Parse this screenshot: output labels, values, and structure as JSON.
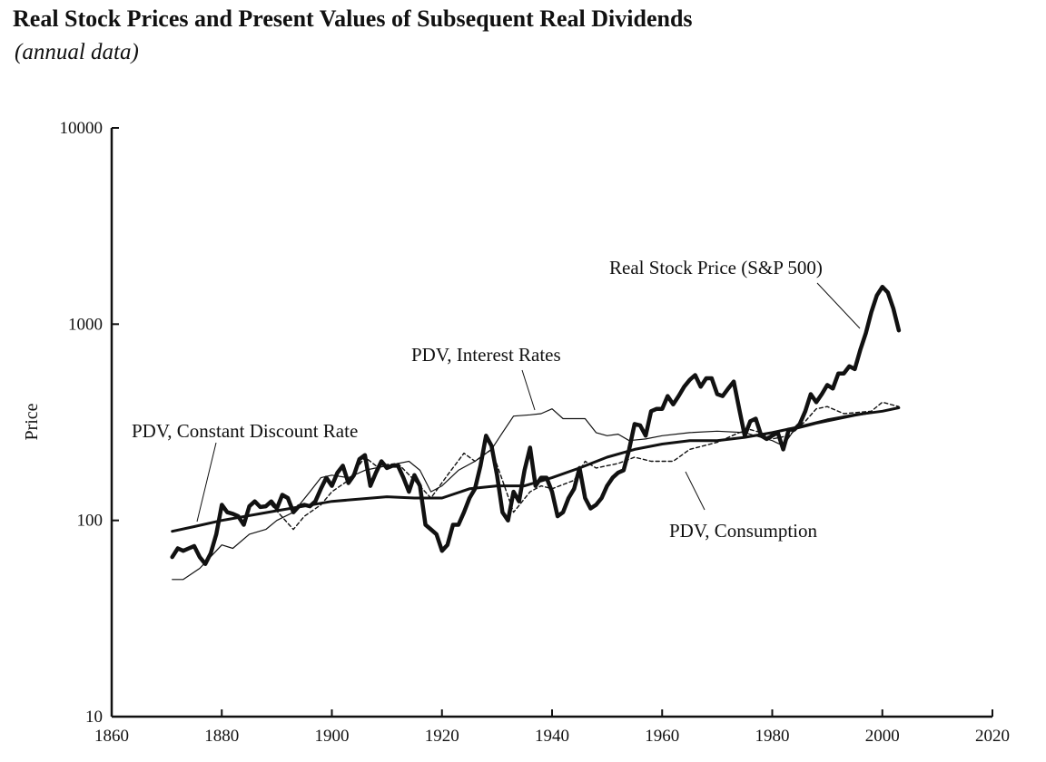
{
  "title": "Real Stock Prices and Present Values of Subsequent Real Dividends",
  "subtitle": "(annual data)",
  "chart_data": {
    "type": "line",
    "title": "Real Stock Prices and Present Values of Subsequent Real Dividends",
    "subtitle": "(annual data)",
    "xlabel": "",
    "ylabel": "Price",
    "xlim": [
      1860,
      2020
    ],
    "ylim": [
      10,
      10000
    ],
    "yscale": "log",
    "xticks": [
      1860,
      1880,
      1900,
      1920,
      1940,
      1960,
      1980,
      2000,
      2020
    ],
    "yticks": [
      10,
      100,
      1000,
      10000
    ],
    "grid": false,
    "series": [
      {
        "name": "Real Stock Price (S&P 500)",
        "style": "thick",
        "x": [
          1871,
          1872,
          1873,
          1874,
          1875,
          1876,
          1877,
          1878,
          1879,
          1880,
          1881,
          1882,
          1883,
          1884,
          1885,
          1886,
          1887,
          1888,
          1889,
          1890,
          1891,
          1892,
          1893,
          1894,
          1895,
          1896,
          1897,
          1898,
          1899,
          1900,
          1901,
          1902,
          1903,
          1904,
          1905,
          1906,
          1907,
          1908,
          1909,
          1910,
          1911,
          1912,
          1913,
          1914,
          1915,
          1916,
          1917,
          1918,
          1919,
          1920,
          1921,
          1922,
          1923,
          1924,
          1925,
          1926,
          1927,
          1928,
          1929,
          1930,
          1931,
          1932,
          1933,
          1934,
          1935,
          1936,
          1937,
          1938,
          1939,
          1940,
          1941,
          1942,
          1943,
          1944,
          1945,
          1946,
          1947,
          1948,
          1949,
          1950,
          1951,
          1952,
          1953,
          1954,
          1955,
          1956,
          1957,
          1958,
          1959,
          1960,
          1961,
          1962,
          1963,
          1964,
          1965,
          1966,
          1967,
          1968,
          1969,
          1970,
          1971,
          1972,
          1973,
          1974,
          1975,
          1976,
          1977,
          1978,
          1979,
          1980,
          1981,
          1982,
          1983,
          1984,
          1985,
          1986,
          1987,
          1988,
          1989,
          1990,
          1991,
          1992,
          1993,
          1994,
          1995,
          1996,
          1997,
          1998,
          1999,
          2000,
          2001,
          2002,
          2003
        ],
        "y": [
          65,
          72,
          70,
          72,
          74,
          65,
          60,
          68,
          85,
          120,
          110,
          108,
          105,
          95,
          118,
          125,
          117,
          118,
          125,
          115,
          135,
          130,
          110,
          118,
          120,
          118,
          125,
          145,
          165,
          150,
          175,
          190,
          155,
          170,
          205,
          215,
          150,
          175,
          200,
          185,
          190,
          190,
          165,
          140,
          170,
          150,
          95,
          90,
          85,
          70,
          75,
          95,
          95,
          110,
          130,
          145,
          190,
          270,
          240,
          170,
          110,
          100,
          140,
          125,
          180,
          235,
          150,
          165,
          165,
          140,
          105,
          110,
          130,
          145,
          185,
          130,
          115,
          120,
          130,
          150,
          165,
          175,
          180,
          230,
          310,
          305,
          270,
          360,
          370,
          370,
          430,
          390,
          430,
          480,
          520,
          550,
          480,
          530,
          530,
          440,
          430,
          470,
          510,
          370,
          270,
          320,
          330,
          270,
          260,
          270,
          280,
          230,
          290,
          290,
          310,
          360,
          440,
          400,
          440,
          490,
          470,
          560,
          560,
          610,
          590,
          740,
          900,
          1150,
          1400,
          1550,
          1450,
          1200,
          930
        ]
      },
      {
        "name": "PDV, Constant Discount Rate",
        "style": "medium",
        "x": [
          1871,
          1875,
          1880,
          1890,
          1900,
          1910,
          1915,
          1920,
          1925,
          1930,
          1935,
          1940,
          1945,
          1950,
          1955,
          1960,
          1965,
          1970,
          1975,
          1980,
          1985,
          1990,
          1995,
          2000,
          2003
        ],
        "y": [
          88,
          93,
          100,
          112,
          125,
          132,
          130,
          130,
          145,
          150,
          150,
          165,
          185,
          210,
          230,
          245,
          255,
          255,
          265,
          280,
          300,
          325,
          345,
          360,
          375
        ]
      },
      {
        "name": "PDV, Interest Rates",
        "style": "thin",
        "x": [
          1871,
          1873,
          1876,
          1879,
          1880,
          1882,
          1885,
          1888,
          1890,
          1893,
          1896,
          1898,
          1900,
          1903,
          1906,
          1910,
          1914,
          1916,
          1918,
          1920,
          1923,
          1926,
          1929,
          1931,
          1933,
          1936,
          1938,
          1940,
          1942,
          1946,
          1948,
          1950,
          1952,
          1954,
          1957,
          1960,
          1965,
          1970,
          1975,
          1980,
          1982,
          1984,
          1988,
          1995,
          2000,
          2003
        ],
        "y": [
          50,
          50,
          57,
          70,
          75,
          72,
          85,
          90,
          100,
          110,
          140,
          165,
          170,
          165,
          180,
          190,
          200,
          180,
          140,
          150,
          180,
          200,
          230,
          280,
          340,
          345,
          350,
          370,
          330,
          330,
          280,
          270,
          275,
          255,
          260,
          270,
          280,
          285,
          280,
          255,
          240,
          290,
          310,
          340,
          360,
          375
        ]
      },
      {
        "name": "PDV, Consumption",
        "style": "dashed",
        "x": [
          1889,
          1893,
          1895,
          1898,
          1900,
          1903,
          1906,
          1908,
          1912,
          1915,
          1918,
          1921,
          1924,
          1926,
          1929,
          1931,
          1933,
          1936,
          1938,
          1940,
          1944,
          1946,
          1948,
          1952,
          1955,
          1958,
          1962,
          1965,
          1970,
          1974,
          1976,
          1978,
          1980,
          1983,
          1986,
          1988,
          1990,
          1993,
          1998,
          2000,
          2003
        ],
        "y": [
          120,
          90,
          105,
          120,
          140,
          160,
          210,
          190,
          195,
          160,
          130,
          170,
          220,
          200,
          230,
          160,
          110,
          140,
          150,
          145,
          160,
          200,
          185,
          195,
          210,
          200,
          200,
          230,
          250,
          280,
          290,
          280,
          260,
          270,
          320,
          370,
          380,
          350,
          360,
          400,
          380
        ]
      }
    ],
    "annotations": [
      {
        "text": "Real Stock Price (S&P 500)",
        "series": "Real Stock Price (S&P 500)"
      },
      {
        "text": "PDV, Interest Rates",
        "series": "PDV, Interest Rates"
      },
      {
        "text": "PDV, Constant Discount Rate",
        "series": "PDV, Constant Discount Rate"
      },
      {
        "text": "PDV, Consumption",
        "series": "PDV, Consumption"
      }
    ]
  }
}
